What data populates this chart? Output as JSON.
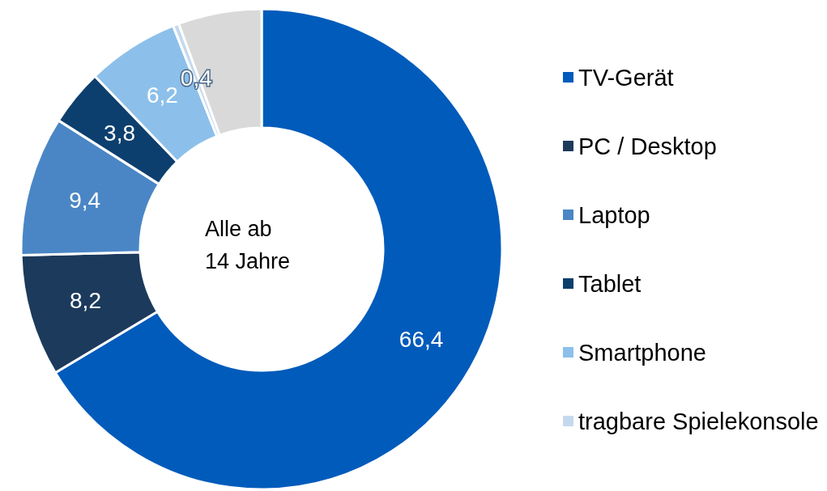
{
  "chart_data": {
    "type": "donut",
    "categories": [
      "TV-Gerät",
      "PC / Desktop",
      "Laptop",
      "Tablet",
      "Smartphone",
      "tragbare Spielekonsole",
      null
    ],
    "values": [
      66.4,
      8.2,
      9.4,
      3.8,
      6.2,
      0.4,
      5.6
    ],
    "colors": [
      "#005bbb",
      "#1c3a5c",
      "#4a86c5",
      "#0d3f6e",
      "#8cc0ea",
      "#c5d9ee",
      "#d9d9d9"
    ],
    "value_labels": [
      "66,4",
      "8,2",
      "9,4",
      "3,8",
      "6,2",
      "0,4",
      null
    ],
    "annotations": [
      "Alle ab\n14 Jahre"
    ],
    "legend": "right"
  }
}
